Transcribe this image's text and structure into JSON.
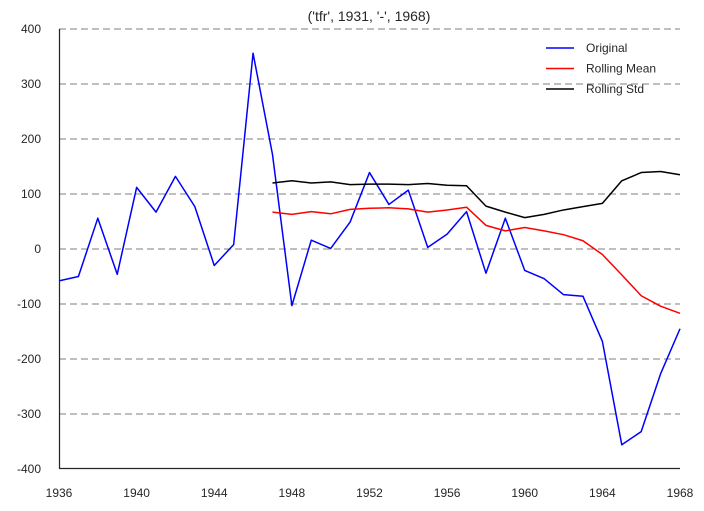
{
  "chart_data": {
    "type": "line",
    "title": "('tfr', 1931, '-', 1968)",
    "xlabel": "",
    "ylabel": "",
    "xlim": [
      1936,
      1968
    ],
    "ylim": [
      -400,
      400
    ],
    "x_ticks": [
      1936,
      1940,
      1944,
      1948,
      1952,
      1956,
      1960,
      1964,
      1968
    ],
    "y_ticks": [
      -400,
      -300,
      -200,
      -100,
      0,
      100,
      200,
      300,
      400
    ],
    "grid": "horizontal dashed",
    "legend_position": "top-right",
    "series": [
      {
        "name": "Original",
        "color": "#0000ff",
        "x": [
          1936,
          1937,
          1938,
          1939,
          1940,
          1941,
          1942,
          1943,
          1944,
          1945,
          1946,
          1947,
          1948,
          1949,
          1950,
          1951,
          1952,
          1953,
          1954,
          1955,
          1956,
          1957,
          1958,
          1959,
          1960,
          1961,
          1962,
          1963,
          1964,
          1965,
          1966,
          1967,
          1968
        ],
        "values": [
          -58,
          -50,
          56,
          -46,
          112,
          67,
          132,
          77,
          -30,
          8,
          356,
          172,
          -103,
          16,
          1,
          49,
          139,
          81,
          107,
          3,
          27,
          68,
          -44,
          56,
          -39,
          -54,
          -83,
          -86,
          -168,
          -356,
          -332,
          -227,
          -145
        ]
      },
      {
        "name": "Rolling Mean",
        "color": "#ff0000",
        "x": [
          1947,
          1948,
          1949,
          1950,
          1951,
          1952,
          1953,
          1954,
          1955,
          1956,
          1957,
          1958,
          1959,
          1960,
          1961,
          1962,
          1963,
          1964,
          1965,
          1966,
          1967,
          1968
        ],
        "values": [
          67,
          63,
          68,
          64,
          72,
          74,
          75,
          73,
          67,
          71,
          76,
          43,
          33,
          39,
          33,
          26,
          15,
          -10,
          -47,
          -85,
          -104,
          -117
        ]
      },
      {
        "name": "Rolling Std",
        "color": "#000000",
        "x": [
          1947,
          1948,
          1949,
          1950,
          1951,
          1952,
          1953,
          1954,
          1955,
          1956,
          1957,
          1958,
          1959,
          1960,
          1961,
          1962,
          1963,
          1964,
          1965,
          1966,
          1967,
          1968
        ],
        "values": [
          120,
          124,
          120,
          122,
          117,
          118,
          118,
          117,
          119,
          116,
          115,
          78,
          67,
          57,
          63,
          71,
          77,
          83,
          124,
          139,
          141,
          135
        ]
      }
    ]
  }
}
